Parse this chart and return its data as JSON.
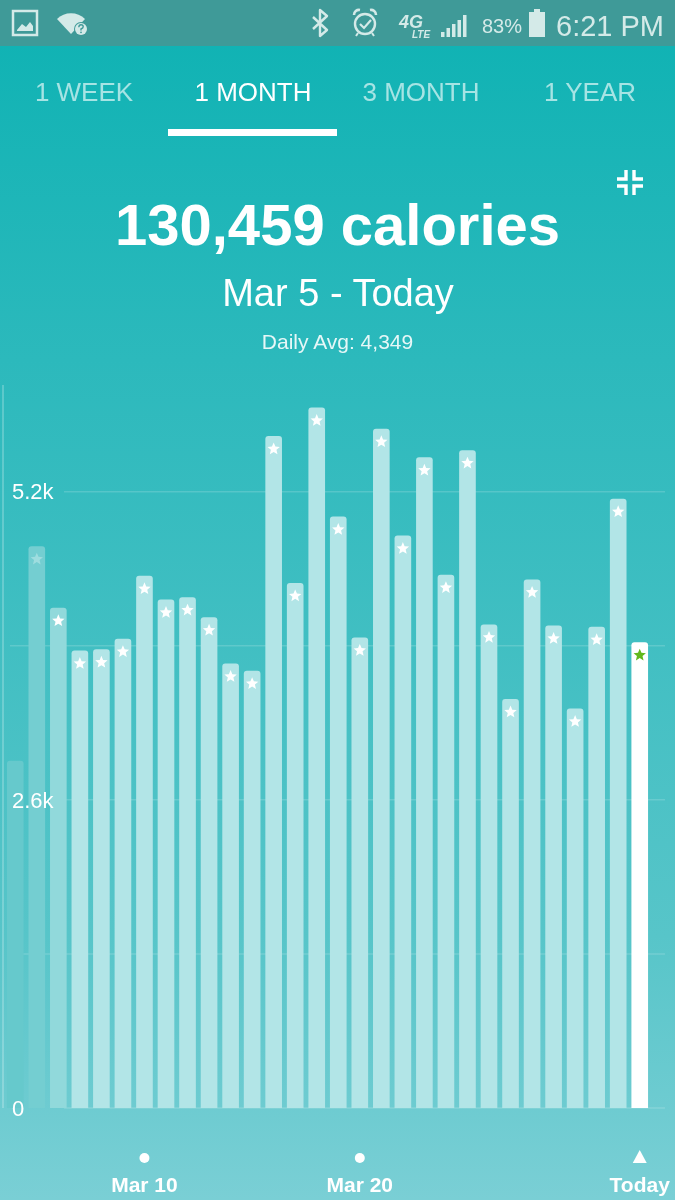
{
  "chart_data": {
    "type": "bar",
    "title": "130,459 calories",
    "subtitle": "Mar 5 - Today",
    "annotations": [
      "4G",
      "LTE",
      "83%",
      "6:21 PM",
      "1 WEEK",
      "1 MONTH",
      "3 MONTH",
      "1 YEAR",
      "Daily Avg: 4,349"
    ],
    "categories": [
      null,
      null,
      null,
      null,
      null,
      null,
      "Mar 10",
      null,
      null,
      null,
      null,
      null,
      null,
      null,
      null,
      null,
      "Mar 20",
      null,
      null,
      null,
      null,
      null,
      null,
      null,
      null,
      null,
      null,
      null,
      null,
      "Today"
    ],
    "values": [
      2930,
      4740,
      4220,
      3860,
      3870,
      3960,
      4490,
      4290,
      4310,
      4140,
      3750,
      3690,
      5670,
      4430,
      5910,
      4990,
      3970,
      5730,
      4830,
      5490,
      4500,
      5550,
      4080,
      3450,
      4460,
      4070,
      3370,
      4060,
      5140,
      3930
    ],
    "colors": [
      "#66c9cc",
      "#74ced1",
      "#91d9db",
      "#b2e5e7",
      "#b2e5e7",
      "#b2e5e7",
      "#b2e5e7",
      "#b2e5e7",
      "#b2e5e7",
      "#b2e5e7",
      "#b2e5e7",
      "#b2e5e7",
      "#b2e5e7",
      "#b2e5e7",
      "#b2e5e7",
      "#b2e5e7",
      "#b2e5e7",
      "#b2e5e7",
      "#b2e5e7",
      "#b2e5e7",
      "#b2e5e7",
      "#b2e5e7",
      "#b2e5e7",
      "#b2e5e7",
      "#b2e5e7",
      "#b2e5e7",
      "#b2e5e7",
      "#b2e5e7",
      "#b2e5e7",
      "#ffffff"
    ],
    "ylim": [
      0,
      6100
    ],
    "yticks": [
      0,
      {
        "value": 1300,
        "label": null
      },
      {
        "value": 2600,
        "label": "2.6k"
      },
      {
        "value": 3900,
        "label": null
      },
      {
        "value": 5200,
        "label": "5.2k"
      }
    ],
    "grid": "y"
  }
}
